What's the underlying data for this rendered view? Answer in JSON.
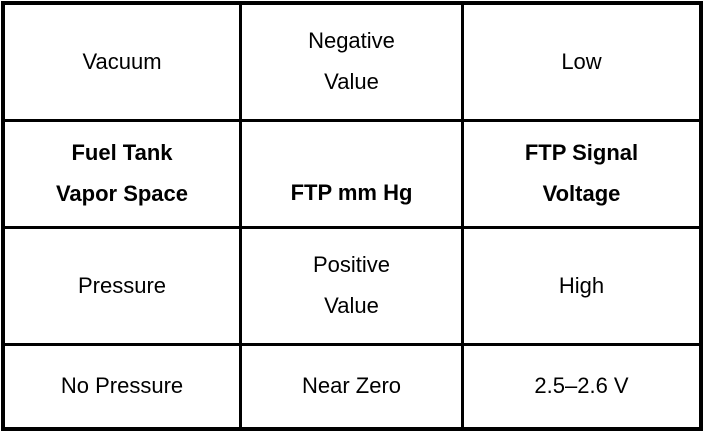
{
  "table": {
    "rows": [
      {
        "cells": [
          "Vacuum",
          "Negative\nValue",
          "Low"
        ]
      },
      {
        "cells": [
          "Fuel Tank\nVapor Space",
          "FTP mm Hg",
          "FTP Signal\nVoltage"
        ]
      },
      {
        "cells": [
          "Pressure",
          "Positive\nValue",
          "High"
        ]
      },
      {
        "cells": [
          "No Pressure",
          "Near Zero",
          "2.5–2.6 V"
        ]
      }
    ]
  }
}
